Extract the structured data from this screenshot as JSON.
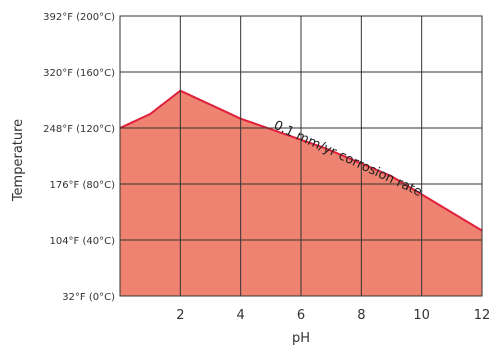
{
  "chart_data": {
    "type": "area",
    "title": "",
    "xlabel": "pH",
    "ylabel": "Temperature",
    "xlim": [
      0,
      12
    ],
    "ylim": [
      32,
      392
    ],
    "grid": true,
    "x_ticks": [
      {
        "value": 2,
        "label": "2"
      },
      {
        "value": 4,
        "label": "4"
      },
      {
        "value": 6,
        "label": "6"
      },
      {
        "value": 8,
        "label": "8"
      },
      {
        "value": 10,
        "label": "10"
      },
      {
        "value": 12,
        "label": "12"
      }
    ],
    "y_ticks": [
      {
        "value": 32,
        "label": "32°F (0°C)"
      },
      {
        "value": 104,
        "label": "104°F (40°C)"
      },
      {
        "value": 176,
        "label": "176°F (80°C)"
      },
      {
        "value": 248,
        "label": "248°F (120°C)"
      },
      {
        "value": 320,
        "label": "320°F (160°C)"
      },
      {
        "value": 392,
        "label": "392°F (200°C)"
      }
    ],
    "series": [
      {
        "x": [
          0,
          1,
          2,
          4,
          6.8,
          9,
          12
        ],
        "values": [
          248,
          266,
          296,
          260,
          222,
          186,
          116
        ],
        "fill_color": "#ef8372",
        "line_color": "#e0203a"
      }
    ],
    "annotations": [
      {
        "text": "0.1 mm/yr corrosion rate",
        "x": 7.5,
        "y": 204,
        "rotation": 25
      }
    ]
  }
}
